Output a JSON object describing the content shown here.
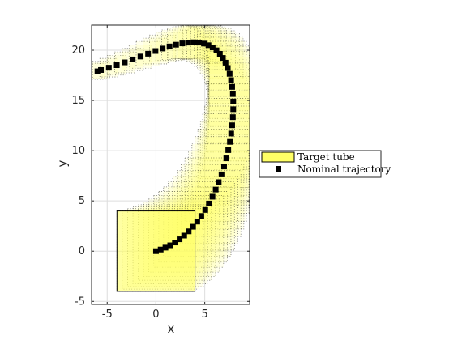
{
  "chart_data": {
    "type": "scatter",
    "xlabel": "x",
    "ylabel": "y",
    "xlim": [
      -6.6,
      9.6
    ],
    "ylim": [
      -5.3,
      22.5
    ],
    "xticks": [
      -5,
      0,
      5
    ],
    "yticks": [
      -5,
      0,
      5,
      10,
      15,
      20
    ],
    "grid": true,
    "legend_position": "right, outside plot area",
    "legend": [
      {
        "label": "Target tube",
        "type": "patch",
        "color": "#ffff66"
      },
      {
        "label": "Nominal trajectory",
        "type": "marker",
        "color": "#000000"
      }
    ],
    "target_set": {
      "x_range": [
        -4,
        4
      ],
      "y_range": [
        -4,
        4
      ]
    },
    "nominal_trajectory": {
      "x": [
        0.0,
        0.48,
        0.97,
        1.46,
        1.94,
        2.42,
        2.89,
        3.35,
        3.8,
        4.23,
        4.65,
        5.05,
        5.43,
        5.79,
        6.12,
        6.43,
        6.72,
        6.98,
        7.21,
        7.41,
        7.58,
        7.71,
        7.81,
        7.88,
        7.92,
        7.92,
        7.88,
        7.81,
        7.7,
        7.55,
        7.36,
        7.13,
        6.86,
        6.55,
        6.2,
        5.81,
        5.38,
        4.92,
        4.42,
        3.88,
        3.31,
        2.7,
        2.06,
        1.39,
        0.68,
        -0.05,
        -0.81,
        -1.59,
        -2.39,
        -3.2,
        -4.02,
        -4.83,
        -5.64,
        -6.0
      ],
      "y": [
        0.0,
        0.16,
        0.35,
        0.58,
        0.86,
        1.18,
        1.55,
        1.97,
        2.43,
        2.94,
        3.5,
        4.1,
        4.74,
        5.42,
        6.13,
        6.87,
        7.64,
        8.43,
        9.24,
        10.06,
        10.88,
        11.71,
        12.53,
        13.34,
        14.13,
        14.9,
        15.64,
        16.35,
        17.02,
        17.65,
        18.23,
        18.76,
        19.23,
        19.64,
        19.99,
        20.28,
        20.5,
        20.66,
        20.76,
        20.79,
        20.76,
        20.68,
        20.55,
        20.38,
        20.17,
        19.92,
        19.65,
        19.37,
        19.08,
        18.79,
        18.51,
        18.26,
        18.03,
        17.9
      ]
    }
  }
}
